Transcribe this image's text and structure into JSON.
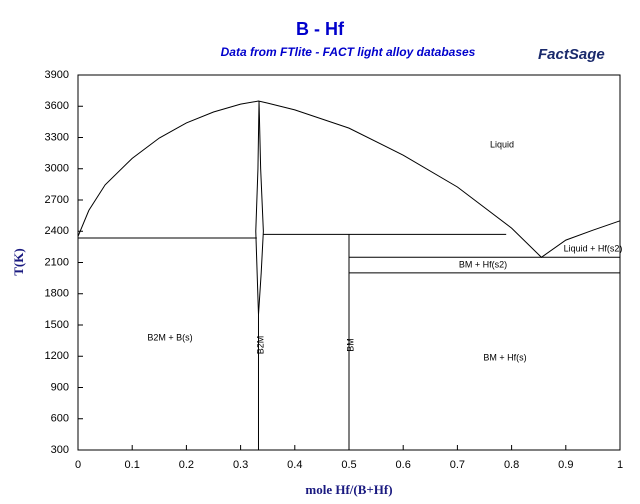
{
  "chart_data": {
    "type": "line",
    "title": "B - Hf",
    "subtitle": "Data from FTlite - FACT light alloy databases",
    "logo": "FactSage",
    "x_label": "mole Hf/(B+Hf)",
    "y_label": "T(K)",
    "color": "#000000",
    "xlim": [
      0,
      1
    ],
    "ylim": [
      300,
      3900
    ],
    "xticks": [
      0,
      0.1,
      0.2,
      0.3,
      0.4,
      0.5,
      0.6,
      0.7,
      0.8,
      0.9,
      1
    ],
    "yticks": [
      300,
      600,
      900,
      1200,
      1500,
      1800,
      2100,
      2400,
      2700,
      3000,
      3300,
      3600,
      3900
    ],
    "series": [
      {
        "x": [
          0,
          0.02,
          0.05,
          0.1,
          0.15,
          0.2,
          0.25,
          0.3,
          0.333,
          0.35,
          0.4,
          0.5,
          0.6,
          0.7,
          0.8,
          0.855,
          0.9,
          0.95,
          1
        ],
        "values": [
          2350,
          2600,
          2845,
          3100,
          3295,
          3440,
          3545,
          3620,
          3650,
          3630,
          3565,
          3390,
          3130,
          2825,
          2430,
          2150,
          2315,
          2410,
          2500
        ]
      },
      {
        "x": [
          0.333,
          0.333,
          0.338,
          0.342,
          0.337,
          0.334
        ],
        "values": [
          300,
          1600,
          2000,
          2400,
          3000,
          3650
        ]
      },
      {
        "x": [
          0.333,
          0.328,
          0.332,
          0.334
        ],
        "values": [
          1600,
          2400,
          3000,
          3650
        ]
      },
      {
        "x": [
          0,
          0.33
        ],
        "values": [
          2335,
          2335
        ]
      },
      {
        "x": [
          0.342,
          0.79
        ],
        "values": [
          2370,
          2370
        ]
      },
      {
        "x": [
          0.5,
          0.5
        ],
        "values": [
          300,
          2370
        ]
      },
      {
        "x": [
          0.5,
          1
        ],
        "values": [
          2150,
          2150
        ]
      },
      {
        "x": [
          0.5,
          1
        ],
        "values": [
          2000,
          2000
        ]
      }
    ],
    "annotations": [
      "Liquid",
      "Liquid + Hf(s2)",
      "BM + Hf(s2)",
      "B2M + B(s)",
      "BM + Hf(s)",
      "B2M",
      "BM"
    ]
  }
}
